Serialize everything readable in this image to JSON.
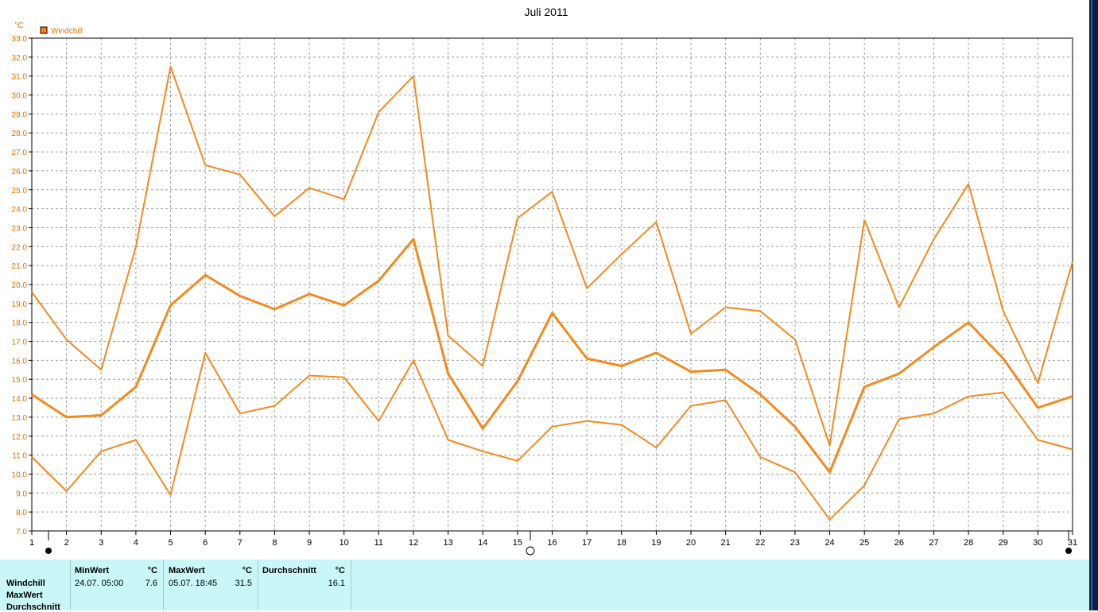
{
  "chart_data": {
    "type": "line",
    "title": "Juli 2011",
    "ylabel": "°C",
    "legend": "Windchill",
    "legend_color": "#ff7f00",
    "line_color": "#f28a1e",
    "ylim": [
      7.0,
      33.0
    ],
    "yticks": [
      "7.0",
      "8.0",
      "9.0",
      "10.0",
      "11.0",
      "12.0",
      "13.0",
      "14.0",
      "15.0",
      "16.0",
      "17.0",
      "18.0",
      "19.0",
      "20.0",
      "21.0",
      "22.0",
      "23.0",
      "24.0",
      "25.0",
      "26.0",
      "27.0",
      "28.0",
      "29.0",
      "30.0",
      "31.0",
      "32.0",
      "33.0"
    ],
    "x": [
      "1",
      "2",
      "3",
      "4",
      "5",
      "6",
      "7",
      "8",
      "9",
      "10",
      "11",
      "12",
      "13",
      "14",
      "15",
      "16",
      "17",
      "18",
      "19",
      "20",
      "21",
      "22",
      "23",
      "24",
      "25",
      "26",
      "27",
      "28",
      "29",
      "30",
      "31"
    ],
    "grid": true,
    "series": [
      {
        "values": [
          19.6,
          17.1,
          15.5,
          22.0,
          31.5,
          26.3,
          25.8,
          23.6,
          25.1,
          24.5,
          29.1,
          31.0,
          17.3,
          15.7,
          23.5,
          24.9,
          19.8,
          21.6,
          23.3,
          17.4,
          18.8,
          18.6,
          17.1,
          11.5,
          23.4,
          18.8,
          22.4,
          25.3,
          18.6,
          14.8,
          21.2
        ]
      },
      {
        "values": [
          14.2,
          13.0,
          13.1,
          14.6,
          18.9,
          20.5,
          19.4,
          18.7,
          19.5,
          18.9,
          20.2,
          22.4,
          15.3,
          12.4,
          14.9,
          18.5,
          16.1,
          15.7,
          16.4,
          15.4,
          15.5,
          14.2,
          12.5,
          10.1,
          14.6,
          15.3,
          16.7,
          18.0,
          16.1,
          13.5,
          14.1
        ]
      },
      {
        "values": [
          10.9,
          9.1,
          11.2,
          11.8,
          8.9,
          16.4,
          13.2,
          13.6,
          15.2,
          15.1,
          12.8,
          16.0,
          11.8,
          11.2,
          10.7,
          12.5,
          12.8,
          12.6,
          11.4,
          13.6,
          13.9,
          10.9,
          10.1,
          7.6,
          9.4,
          12.9,
          13.2,
          14.1,
          14.3,
          11.8,
          11.3
        ]
      }
    ]
  },
  "stats": {
    "row_labels": [
      "Windchill",
      "MaxWert",
      "Durchschnitt"
    ],
    "min": {
      "header": "MinWert",
      "unit": "°C",
      "time": "24.07.  05:00",
      "value": "7.6"
    },
    "max": {
      "header": "MaxWert",
      "unit": "°C",
      "time": "05.07.  18:45",
      "value": "31.5"
    },
    "avg": {
      "header": "Durchschnitt",
      "unit": "°C",
      "value": "16.1"
    }
  }
}
